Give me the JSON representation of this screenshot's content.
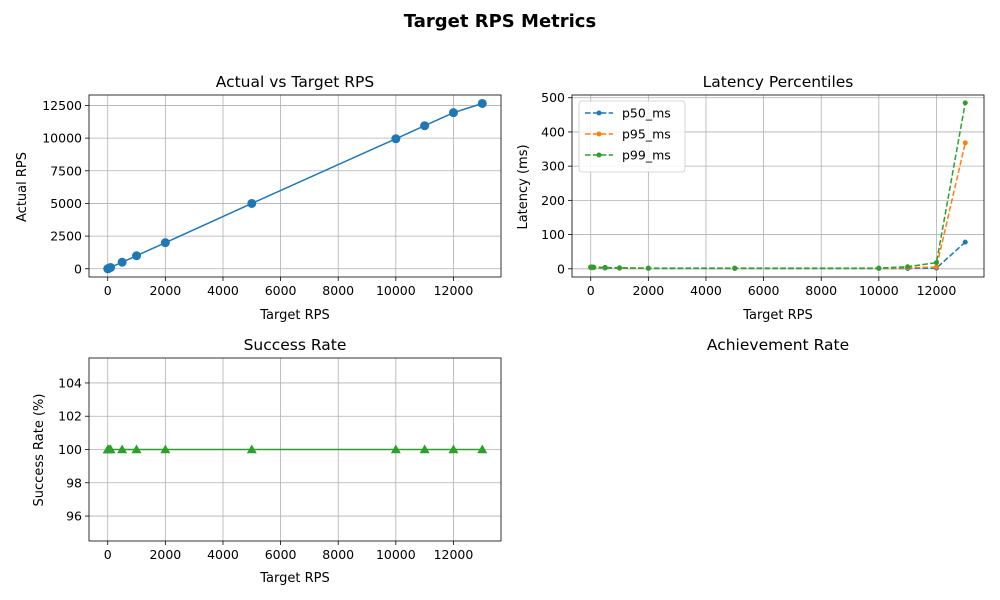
{
  "figure": {
    "title": "Target RPS Metrics"
  },
  "chart_data": [
    {
      "type": "line",
      "title": "Actual vs Target RPS",
      "xlabel": "Target RPS",
      "ylabel": "Actual RPS",
      "xlim": [
        -650,
        13650
      ],
      "ylim": [
        -630,
        13300
      ],
      "xticks": [
        0,
        2000,
        4000,
        6000,
        8000,
        10000,
        12000
      ],
      "xtick_labels": [
        "0",
        "2000",
        "4000",
        "6000",
        "8000",
        "10000",
        "12000"
      ],
      "yticks": [
        0,
        2500,
        5000,
        7500,
        10000,
        12500
      ],
      "ytick_labels": [
        "0",
        "2500",
        "5000",
        "7500",
        "10000",
        "12500"
      ],
      "grid": true,
      "series": [
        {
          "color": "#1f77b4",
          "marker": "circle",
          "linestyle": "solid",
          "x": [
            1,
            10,
            50,
            100,
            500,
            1000,
            2000,
            5000,
            10000,
            11000,
            12000,
            13000
          ],
          "y": [
            1,
            10,
            50,
            100,
            500,
            1000,
            2000,
            5000,
            9950,
            10950,
            11950,
            12650
          ]
        }
      ]
    },
    {
      "type": "line",
      "title": "Latency Percentiles",
      "xlabel": "Target RPS",
      "ylabel": "Latency (ms)",
      "xlim": [
        -650,
        13650
      ],
      "ylim": [
        -24,
        508
      ],
      "xticks": [
        0,
        2000,
        4000,
        6000,
        8000,
        10000,
        12000
      ],
      "xtick_labels": [
        "0",
        "2000",
        "4000",
        "6000",
        "8000",
        "10000",
        "12000"
      ],
      "yticks": [
        0,
        100,
        200,
        300,
        400,
        500
      ],
      "ytick_labels": [
        "0",
        "100",
        "200",
        "300",
        "400",
        "500"
      ],
      "grid": true,
      "legend": "top-left",
      "series": [
        {
          "name": "p50_ms",
          "color": "#1f77b4",
          "marker": "dot",
          "linestyle": "dashed",
          "x": [
            1,
            10,
            50,
            100,
            500,
            1000,
            2000,
            5000,
            10000,
            11000,
            12000,
            13000
          ],
          "y": [
            3,
            3,
            3,
            3,
            2,
            1.5,
            1,
            1,
            1,
            1,
            2,
            78
          ]
        },
        {
          "name": "p95_ms",
          "color": "#ff7f0e",
          "marker": "dot",
          "linestyle": "dashed",
          "x": [
            1,
            10,
            50,
            100,
            500,
            1000,
            2000,
            5000,
            10000,
            11000,
            12000,
            13000
          ],
          "y": [
            4,
            4,
            4,
            4,
            3,
            2,
            1.5,
            1.5,
            1.5,
            3,
            5,
            368
          ]
        },
        {
          "name": "p99_ms",
          "color": "#2ca02c",
          "marker": "dot",
          "linestyle": "dashed",
          "x": [
            1,
            10,
            50,
            100,
            500,
            1000,
            2000,
            5000,
            10000,
            11000,
            12000,
            13000
          ],
          "y": [
            5,
            5,
            5,
            5,
            4,
            3,
            2,
            2,
            2,
            6,
            18,
            485
          ]
        }
      ]
    },
    {
      "type": "line",
      "title": "Success Rate",
      "xlabel": "Target RPS",
      "ylabel": "Success Rate (%)",
      "xlim": [
        -650,
        13650
      ],
      "ylim": [
        94.5,
        105.5
      ],
      "xticks": [
        0,
        2000,
        4000,
        6000,
        8000,
        10000,
        12000
      ],
      "xtick_labels": [
        "0",
        "2000",
        "4000",
        "6000",
        "8000",
        "10000",
        "12000"
      ],
      "yticks": [
        96,
        98,
        100,
        102,
        104
      ],
      "ytick_labels": [
        "96",
        "98",
        "100",
        "102",
        "104"
      ],
      "grid": true,
      "series": [
        {
          "color": "#2ca02c",
          "marker": "triangle",
          "linestyle": "solid",
          "x": [
            1,
            10,
            50,
            100,
            500,
            1000,
            2000,
            5000,
            10000,
            11000,
            12000,
            13000
          ],
          "y": [
            100,
            100,
            100,
            100,
            100,
            100,
            100,
            100,
            100,
            100,
            100,
            100
          ]
        }
      ]
    },
    {
      "type": "line",
      "title": "Achievement Rate",
      "series": []
    }
  ]
}
